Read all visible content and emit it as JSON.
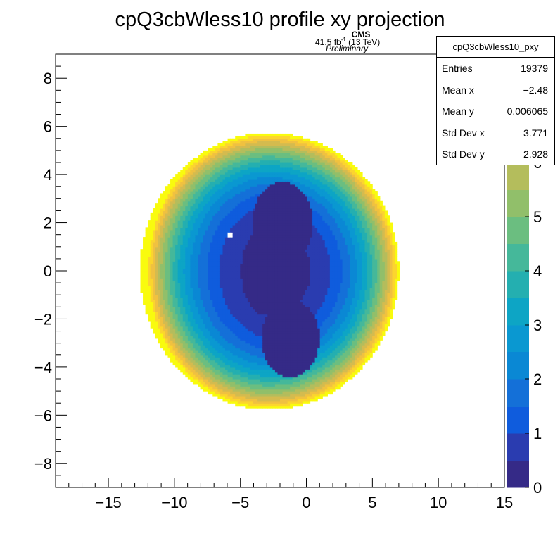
{
  "chart_data": {
    "type": "heatmap",
    "title": "cpQ3cbWless10 profile xy projection",
    "xlim": [
      -19,
      15
    ],
    "ylim": [
      -9,
      9
    ],
    "x_ticks": [
      -15,
      -10,
      -5,
      0,
      5,
      10,
      15
    ],
    "y_ticks": [
      -8,
      -6,
      -4,
      -2,
      0,
      2,
      4,
      6,
      8
    ],
    "z_range": [
      0,
      8
    ],
    "z_ticks": [
      0,
      1,
      2,
      3,
      4,
      5,
      6,
      7
    ],
    "palette": [
      "#352a87",
      "#2a3cb0",
      "#0f5cdd",
      "#1470d8",
      "#0a88d4",
      "#0a98d1",
      "#0da5c5",
      "#24afb0",
      "#45b89a",
      "#6bbe80",
      "#91bf6a",
      "#b4bd5c",
      "#d4bb4f",
      "#f0c140",
      "#fcd52e",
      "#f9fb0e"
    ],
    "entries": {
      "center_x": -2.8,
      "center_y": 0.0,
      "semi_axis_x": 9.8,
      "semi_axis_y": 5.75,
      "peaks": [
        {
          "x": -1.8,
          "y": 2.0,
          "rx": 2.3,
          "ry": 1.7
        },
        {
          "x": -1.2,
          "y": -2.8,
          "rx": 2.2,
          "ry": 1.6
        }
      ],
      "hot_pixel": {
        "x": -5.8,
        "y": 1.5
      }
    },
    "cms_label": {
      "experiment": "CMS",
      "status": "Preliminary",
      "lumi": "41.5 fb",
      "lumi_exp": "-1",
      "energy": " (13 TeV)"
    },
    "stats": {
      "name": "cpQ3cbWless10_pxy",
      "rows": [
        {
          "label": "Entries",
          "value": "19379"
        },
        {
          "label": "Mean x",
          "value": "−2.48"
        },
        {
          "label": "Mean y",
          "value": "0.006065"
        },
        {
          "label": "Std Dev x",
          "value": "3.771"
        },
        {
          "label": "Std Dev y",
          "value": "2.928"
        }
      ]
    }
  }
}
